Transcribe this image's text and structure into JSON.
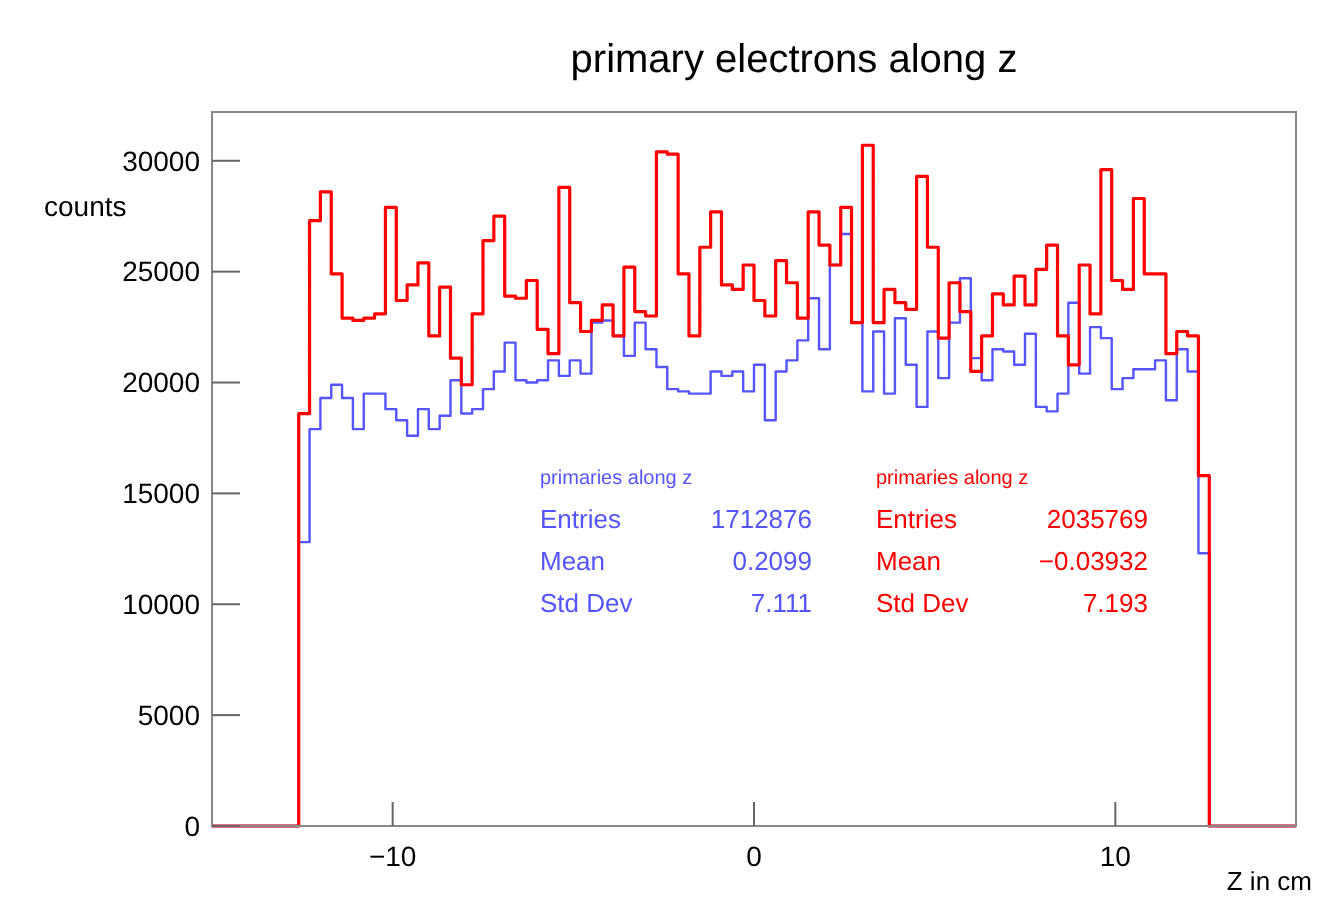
{
  "chart_data": {
    "type": "histogram",
    "title": "primary electrons along z",
    "xlabel": "Z in cm",
    "ylabel": "counts",
    "bins": [
      -15,
      -12.6,
      -12.3,
      -12,
      -11.7,
      -11.4,
      -11.1,
      -10.8,
      -10.5,
      -10.2,
      -9.9,
      -9.6,
      -9.3,
      -9,
      -8.7,
      -8.4,
      -8.1,
      -7.8,
      -7.5,
      -7.2,
      -6.9,
      -6.6,
      -6.3,
      -6,
      -5.7,
      -5.4,
      -5.1,
      -4.8,
      -4.5,
      -4.2,
      -3.9,
      -3.6,
      -3.3,
      -3,
      -2.7,
      -2.4,
      -2.1,
      -1.8,
      -1.5,
      -1.2,
      -0.9,
      -0.6,
      -0.3,
      0,
      0.3,
      0.6,
      0.9,
      1.2,
      1.5,
      1.8,
      2.1,
      2.4,
      2.7,
      3,
      3.3,
      3.6,
      3.9,
      4.2,
      4.5,
      4.8,
      5.1,
      5.4,
      5.7,
      6,
      6.3,
      6.6,
      6.9,
      7.2,
      7.5,
      7.8,
      8.1,
      8.4,
      8.7,
      9,
      9.3,
      9.6,
      9.9,
      10.2,
      10.5,
      10.8,
      11.1,
      11.4,
      11.7,
      12,
      12.3,
      12.6,
      15
    ],
    "series": [
      {
        "color": "#5555ff",
        "values": [
          0,
          12800,
          17900,
          19300,
          19900,
          19300,
          17900,
          19500,
          19500,
          18800,
          18300,
          17600,
          18800,
          17900,
          18500,
          20100,
          18600,
          18800,
          19700,
          20500,
          21800,
          20100,
          20000,
          20100,
          21000,
          20300,
          21000,
          20400,
          22700,
          22800,
          22100,
          21200,
          22700,
          21500,
          20700,
          19700,
          19600,
          19500,
          19500,
          20500,
          20300,
          20500,
          19600,
          20800,
          18300,
          20500,
          21000,
          21900,
          23800,
          21500,
          25300,
          26700,
          22700,
          19600,
          22300,
          19500,
          22900,
          20800,
          18900,
          22300,
          20200,
          22700,
          24700,
          21100,
          20100,
          21500,
          21400,
          20800,
          22200,
          18900,
          18700,
          19500,
          23600,
          20400,
          22500,
          22000,
          19700,
          20200,
          20600,
          20600,
          21000,
          19200,
          21500,
          20500,
          12300,
          0
        ]
      },
      {
        "color": "#ff0000",
        "values": [
          0,
          18600,
          27300,
          28600,
          24900,
          22900,
          22800,
          22900,
          23100,
          27900,
          23700,
          24400,
          25400,
          22100,
          24300,
          21100,
          19900,
          23100,
          26400,
          27500,
          23900,
          23800,
          24600,
          22400,
          21300,
          28800,
          23600,
          22300,
          22800,
          23500,
          22100,
          25200,
          23200,
          23000,
          30400,
          30300,
          24900,
          22100,
          26100,
          27700,
          24400,
          24200,
          25300,
          23700,
          23000,
          25500,
          24500,
          22900,
          27700,
          26200,
          25300,
          27900,
          22700,
          30700,
          22700,
          24200,
          23600,
          23300,
          29300,
          26100,
          22000,
          24500,
          23200,
          20500,
          22100,
          24000,
          23500,
          24800,
          23500,
          25100,
          26200,
          22100,
          20800,
          25300,
          23100,
          29600,
          24600,
          24200,
          28300,
          24900,
          24900,
          21300,
          22300,
          22100,
          15800,
          0
        ]
      }
    ],
    "xlim": [
      -15,
      15
    ],
    "xticks": [
      {
        "value": -10,
        "label": "−10"
      },
      0,
      10
    ],
    "ylim": [
      0,
      32200
    ],
    "yticks": [
      0,
      5000,
      10000,
      15000,
      20000,
      25000,
      30000
    ],
    "annotations": [
      "primaries along z",
      "Entries 1712876",
      "Mean 0.2099",
      "Std Dev 7.111",
      "primaries along z",
      "Entries 2035769",
      "Mean −0.03932",
      "Std Dev 7.193"
    ]
  }
}
